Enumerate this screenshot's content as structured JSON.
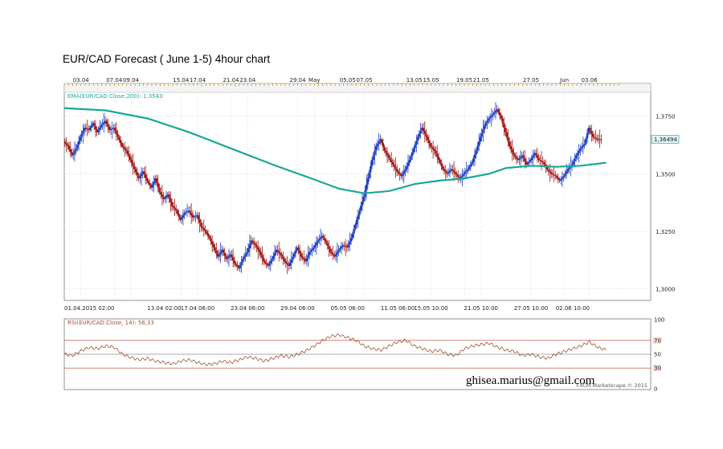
{
  "title": "EUR/CAD Forecast ( June 1-5) 4hour chart",
  "watermark": "ghisea.marius@gmail.com",
  "credit": "FXCM Marketscape © 2015",
  "colors": {
    "bull": "#1f3fbf",
    "bear": "#a01818",
    "ema": "#1aa89a",
    "rsi": "#a0522d",
    "rsi_ref": "#c0392b",
    "grid": "#c8c8c8",
    "price_badge_bg": "#dff3f6"
  },
  "chart_data": [
    {
      "type": "candlestick",
      "title": "EUR/CAD Forecast ( June 1-5) 4hour chart",
      "indicator_label": "EMA(EUR/CAD.Close,200): 1,3543",
      "last_price_label": "1,36494",
      "last_price": 1.36494,
      "ylim": [
        1.295,
        1.385
      ],
      "yticks": [
        1.3,
        1.325,
        1.35,
        1.375
      ],
      "ytick_labels": [
        "1,3000",
        "1,3250",
        "1,3500",
        "1,3750"
      ],
      "x_range_days": [
        0,
        66.5
      ],
      "top_axis_labels": [
        {
          "day": 2,
          "label": "03.04"
        },
        {
          "day": 6,
          "label": "07.04"
        },
        {
          "day": 8,
          "label": "09.04"
        },
        {
          "day": 14,
          "label": "15.04"
        },
        {
          "day": 16,
          "label": "17.04"
        },
        {
          "day": 20,
          "label": "21.04"
        },
        {
          "day": 22,
          "label": "23.04"
        },
        {
          "day": 28,
          "label": "29.04"
        },
        {
          "day": 30,
          "label": "May"
        },
        {
          "day": 34,
          "label": "05.05"
        },
        {
          "day": 36,
          "label": "07.05"
        },
        {
          "day": 42,
          "label": "13.05"
        },
        {
          "day": 44,
          "label": "15.05"
        },
        {
          "day": 48,
          "label": "19.05"
        },
        {
          "day": 50,
          "label": "21.05"
        },
        {
          "day": 56,
          "label": "27.05"
        },
        {
          "day": 60,
          "label": "Jun"
        },
        {
          "day": 63,
          "label": "03.06"
        }
      ],
      "bottom_axis_labels": [
        {
          "day": 0,
          "label": "01.04.2015 02:00"
        },
        {
          "day": 12,
          "label": "13.04 02:00"
        },
        {
          "day": 16,
          "label": "17.04 06:00"
        },
        {
          "day": 22,
          "label": "23.04 06:00"
        },
        {
          "day": 28,
          "label": "29.04 06:00"
        },
        {
          "day": 34,
          "label": "05.05 06:00"
        },
        {
          "day": 40,
          "label": "11.05 06:00"
        },
        {
          "day": 44,
          "label": "15.05 10:00"
        },
        {
          "day": 50,
          "label": "21.05 10:00"
        },
        {
          "day": 56,
          "label": "27.05 10:00"
        },
        {
          "day": 61,
          "label": "02.06 10:00"
        }
      ],
      "price_series": [
        [
          0,
          1.364
        ],
        [
          0.5,
          1.362
        ],
        [
          1,
          1.358
        ],
        [
          1.5,
          1.361
        ],
        [
          2,
          1.366
        ],
        [
          2.5,
          1.37
        ],
        [
          3,
          1.369
        ],
        [
          3.5,
          1.372
        ],
        [
          4,
          1.368
        ],
        [
          4.5,
          1.371
        ],
        [
          5,
          1.373
        ],
        [
          5.5,
          1.369
        ],
        [
          6,
          1.37
        ],
        [
          6.5,
          1.366
        ],
        [
          7,
          1.362
        ],
        [
          7.5,
          1.36
        ],
        [
          8,
          1.356
        ],
        [
          8.5,
          1.352
        ],
        [
          9,
          1.348
        ],
        [
          9.5,
          1.351
        ],
        [
          10,
          1.347
        ],
        [
          10.5,
          1.344
        ],
        [
          11,
          1.348
        ],
        [
          11.5,
          1.342
        ],
        [
          12,
          1.339
        ],
        [
          12.5,
          1.341
        ],
        [
          13,
          1.336
        ],
        [
          13.5,
          1.334
        ],
        [
          14,
          1.33
        ],
        [
          14.5,
          1.333
        ],
        [
          15,
          1.334
        ],
        [
          15.5,
          1.331
        ],
        [
          16,
          1.332
        ],
        [
          16.5,
          1.327
        ],
        [
          17,
          1.325
        ],
        [
          17.5,
          1.322
        ],
        [
          18,
          1.318
        ],
        [
          18.5,
          1.314
        ],
        [
          19,
          1.317
        ],
        [
          19.5,
          1.313
        ],
        [
          20,
          1.315
        ],
        [
          20.5,
          1.311
        ],
        [
          21,
          1.309
        ],
        [
          21.5,
          1.313
        ],
        [
          22,
          1.316
        ],
        [
          22.5,
          1.321
        ],
        [
          23,
          1.319
        ],
        [
          23.5,
          1.316
        ],
        [
          24,
          1.312
        ],
        [
          24.5,
          1.31
        ],
        [
          25,
          1.313
        ],
        [
          25.5,
          1.317
        ],
        [
          26,
          1.315
        ],
        [
          26.5,
          1.312
        ],
        [
          27,
          1.31
        ],
        [
          27.5,
          1.314
        ],
        [
          28,
          1.318
        ],
        [
          28.5,
          1.314
        ],
        [
          29,
          1.312
        ],
        [
          29.5,
          1.316
        ],
        [
          30,
          1.318
        ],
        [
          30.5,
          1.321
        ],
        [
          31,
          1.323
        ],
        [
          31.5,
          1.32
        ],
        [
          32,
          1.316
        ],
        [
          32.5,
          1.314
        ],
        [
          33,
          1.317
        ],
        [
          33.5,
          1.319
        ],
        [
          34,
          1.318
        ],
        [
          34.5,
          1.322
        ],
        [
          35,
          1.328
        ],
        [
          35.5,
          1.334
        ],
        [
          36,
          1.34
        ],
        [
          36.5,
          1.348
        ],
        [
          37,
          1.356
        ],
        [
          37.5,
          1.362
        ],
        [
          38,
          1.365
        ],
        [
          38.5,
          1.36
        ],
        [
          39,
          1.357
        ],
        [
          39.5,
          1.354
        ],
        [
          40,
          1.351
        ],
        [
          40.5,
          1.349
        ],
        [
          41,
          1.352
        ],
        [
          41.5,
          1.356
        ],
        [
          42,
          1.361
        ],
        [
          42.5,
          1.366
        ],
        [
          43,
          1.37
        ],
        [
          43.5,
          1.366
        ],
        [
          44,
          1.362
        ],
        [
          44.5,
          1.36
        ],
        [
          45,
          1.356
        ],
        [
          45.5,
          1.352
        ],
        [
          46,
          1.35
        ],
        [
          46.5,
          1.352
        ],
        [
          47,
          1.35
        ],
        [
          47.5,
          1.348
        ],
        [
          48,
          1.35
        ],
        [
          48.5,
          1.352
        ],
        [
          49,
          1.355
        ],
        [
          49.5,
          1.36
        ],
        [
          50,
          1.366
        ],
        [
          50.5,
          1.371
        ],
        [
          51,
          1.374
        ],
        [
          51.5,
          1.376
        ],
        [
          52,
          1.378
        ],
        [
          52.5,
          1.374
        ],
        [
          53,
          1.368
        ],
        [
          53.5,
          1.362
        ],
        [
          54,
          1.358
        ],
        [
          54.5,
          1.356
        ],
        [
          55,
          1.358
        ],
        [
          55.5,
          1.354
        ],
        [
          56,
          1.356
        ],
        [
          56.5,
          1.359
        ],
        [
          57,
          1.356
        ],
        [
          57.5,
          1.355
        ],
        [
          58,
          1.352
        ],
        [
          58.5,
          1.35
        ],
        [
          59,
          1.349
        ],
        [
          59.5,
          1.347
        ],
        [
          60,
          1.349
        ],
        [
          60.5,
          1.352
        ],
        [
          61,
          1.354
        ],
        [
          61.5,
          1.358
        ],
        [
          62,
          1.361
        ],
        [
          62.5,
          1.363
        ],
        [
          63,
          1.37
        ],
        [
          63.5,
          1.366
        ],
        [
          64,
          1.365
        ],
        [
          64.5,
          1.3649
        ]
      ],
      "ema_series": [
        [
          0,
          1.3785
        ],
        [
          5,
          1.3775
        ],
        [
          10,
          1.374
        ],
        [
          15,
          1.368
        ],
        [
          20,
          1.361
        ],
        [
          25,
          1.354
        ],
        [
          30,
          1.3475
        ],
        [
          33,
          1.3435
        ],
        [
          36,
          1.3415
        ],
        [
          39,
          1.3425
        ],
        [
          42,
          1.3455
        ],
        [
          45,
          1.347
        ],
        [
          48,
          1.348
        ],
        [
          51,
          1.35
        ],
        [
          53,
          1.3525
        ],
        [
          56,
          1.3535
        ],
        [
          59,
          1.353
        ],
        [
          62,
          1.3535
        ],
        [
          65,
          1.3548
        ]
      ]
    },
    {
      "type": "line",
      "indicator_label": "RSI(EUR/CAD.Close, 14): 56,33",
      "ylim": [
        0,
        100
      ],
      "yticks": [
        0,
        30,
        50,
        70,
        100
      ],
      "ytick_labels": [
        "0",
        "30",
        "50",
        "70",
        "100"
      ],
      "reference_lines": [
        30,
        50,
        70
      ],
      "series": [
        [
          0,
          50
        ],
        [
          1,
          48
        ],
        [
          2,
          55
        ],
        [
          3,
          60
        ],
        [
          4,
          58
        ],
        [
          5,
          62
        ],
        [
          6,
          60
        ],
        [
          7,
          50
        ],
        [
          8,
          45
        ],
        [
          9,
          42
        ],
        [
          10,
          44
        ],
        [
          11,
          40
        ],
        [
          12,
          38
        ],
        [
          13,
          36
        ],
        [
          14,
          40
        ],
        [
          15,
          42
        ],
        [
          16,
          38
        ],
        [
          17,
          35
        ],
        [
          18,
          36
        ],
        [
          19,
          40
        ],
        [
          20,
          38
        ],
        [
          21,
          42
        ],
        [
          22,
          46
        ],
        [
          23,
          44
        ],
        [
          24,
          40
        ],
        [
          25,
          44
        ],
        [
          26,
          48
        ],
        [
          27,
          46
        ],
        [
          28,
          50
        ],
        [
          29,
          55
        ],
        [
          30,
          62
        ],
        [
          31,
          70
        ],
        [
          32,
          76
        ],
        [
          33,
          78
        ],
        [
          34,
          74
        ],
        [
          35,
          70
        ],
        [
          36,
          62
        ],
        [
          37,
          58
        ],
        [
          38,
          56
        ],
        [
          39,
          62
        ],
        [
          40,
          68
        ],
        [
          41,
          70
        ],
        [
          42,
          62
        ],
        [
          43,
          58
        ],
        [
          44,
          54
        ],
        [
          45,
          56
        ],
        [
          46,
          50
        ],
        [
          47,
          48
        ],
        [
          48,
          58
        ],
        [
          49,
          62
        ],
        [
          50,
          64
        ],
        [
          51,
          66
        ],
        [
          52,
          60
        ],
        [
          53,
          56
        ],
        [
          54,
          54
        ],
        [
          55,
          48
        ],
        [
          56,
          50
        ],
        [
          57,
          46
        ],
        [
          58,
          44
        ],
        [
          59,
          50
        ],
        [
          60,
          54
        ],
        [
          61,
          58
        ],
        [
          62,
          62
        ],
        [
          63,
          68
        ],
        [
          64,
          60
        ],
        [
          65,
          56
        ]
      ]
    }
  ]
}
